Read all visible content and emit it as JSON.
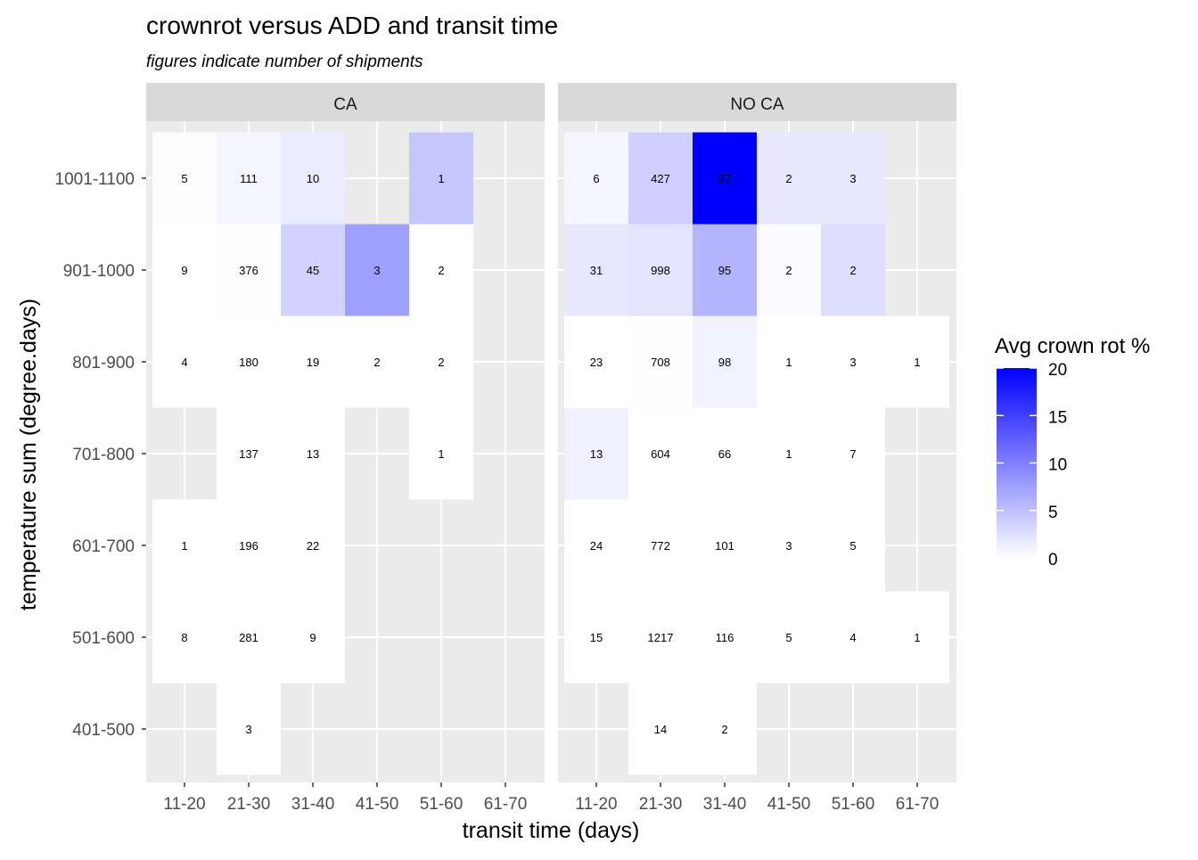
{
  "chart_data": {
    "type": "heatmap",
    "title": "crownrot versus ADD and transit time",
    "subtitle": "figures indicate number of shipments",
    "xlabel": "transit time (days)",
    "ylabel": "temperature sum (degree.days)",
    "x_categories": [
      "11-20",
      "21-30",
      "31-40",
      "41-50",
      "51-60",
      "61-70"
    ],
    "y_categories": [
      "401-500",
      "501-600",
      "601-700",
      "701-800",
      "801-900",
      "901-1000",
      "1001-1100"
    ],
    "legend": {
      "title": "Avg crown rot %",
      "range": [
        0,
        20
      ],
      "ticks": [
        0,
        5,
        10,
        15,
        20
      ],
      "low_color": "#ffffff",
      "high_color": "#0000ff",
      "placement": "right"
    },
    "grid": true,
    "panels": [
      {
        "name": "CA",
        "cells": [
          {
            "x": "11-20",
            "y": "1001-1100",
            "value": 0.2,
            "count": "5"
          },
          {
            "x": "21-30",
            "y": "1001-1100",
            "value": 0.8,
            "count": "111"
          },
          {
            "x": "31-40",
            "y": "1001-1100",
            "value": 1.6,
            "count": "10"
          },
          {
            "x": "51-60",
            "y": "1001-1100",
            "value": 4.5,
            "count": "1"
          },
          {
            "x": "11-20",
            "y": "901-1000",
            "value": 0.0,
            "count": "9"
          },
          {
            "x": "21-30",
            "y": "901-1000",
            "value": 0.1,
            "count": "376"
          },
          {
            "x": "31-40",
            "y": "901-1000",
            "value": 3.5,
            "count": "45"
          },
          {
            "x": "41-50",
            "y": "901-1000",
            "value": 7.5,
            "count": "3"
          },
          {
            "x": "51-60",
            "y": "901-1000",
            "value": 0.0,
            "count": "2"
          },
          {
            "x": "11-20",
            "y": "801-900",
            "value": 0.0,
            "count": "4"
          },
          {
            "x": "21-30",
            "y": "801-900",
            "value": 0.0,
            "count": "180"
          },
          {
            "x": "31-40",
            "y": "801-900",
            "value": 0.0,
            "count": "19"
          },
          {
            "x": "41-50",
            "y": "801-900",
            "value": 0.0,
            "count": "2"
          },
          {
            "x": "51-60",
            "y": "801-900",
            "value": 0.0,
            "count": "2"
          },
          {
            "x": "21-30",
            "y": "701-800",
            "value": 0.0,
            "count": "137"
          },
          {
            "x": "31-40",
            "y": "701-800",
            "value": 0.0,
            "count": "13"
          },
          {
            "x": "51-60",
            "y": "701-800",
            "value": 0.0,
            "count": "1"
          },
          {
            "x": "11-20",
            "y": "601-700",
            "value": 0.0,
            "count": "1"
          },
          {
            "x": "21-30",
            "y": "601-700",
            "value": 0.0,
            "count": "196"
          },
          {
            "x": "31-40",
            "y": "601-700",
            "value": 0.0,
            "count": "22"
          },
          {
            "x": "11-20",
            "y": "501-600",
            "value": 0.0,
            "count": "8"
          },
          {
            "x": "21-30",
            "y": "501-600",
            "value": 0.0,
            "count": "281"
          },
          {
            "x": "31-40",
            "y": "501-600",
            "value": 0.0,
            "count": "9"
          },
          {
            "x": "21-30",
            "y": "401-500",
            "value": 0.0,
            "count": "3"
          }
        ]
      },
      {
        "name": "NO CA",
        "cells": [
          {
            "x": "11-20",
            "y": "1001-1100",
            "value": 0.8,
            "count": "6"
          },
          {
            "x": "21-30",
            "y": "1001-1100",
            "value": 3.8,
            "count": "427"
          },
          {
            "x": "31-40",
            "y": "1001-1100",
            "value": 20.0,
            "count": "67"
          },
          {
            "x": "41-50",
            "y": "1001-1100",
            "value": 1.9,
            "count": "2"
          },
          {
            "x": "51-60",
            "y": "1001-1100",
            "value": 1.8,
            "count": "3"
          },
          {
            "x": "11-20",
            "y": "901-1000",
            "value": 1.9,
            "count": "31"
          },
          {
            "x": "21-30",
            "y": "901-1000",
            "value": 2.1,
            "count": "998"
          },
          {
            "x": "31-40",
            "y": "901-1000",
            "value": 6.0,
            "count": "95"
          },
          {
            "x": "41-50",
            "y": "901-1000",
            "value": 0.3,
            "count": "2"
          },
          {
            "x": "51-60",
            "y": "901-1000",
            "value": 2.6,
            "count": "2"
          },
          {
            "x": "11-20",
            "y": "801-900",
            "value": 0.0,
            "count": "23"
          },
          {
            "x": "21-30",
            "y": "801-900",
            "value": 0.1,
            "count": "708"
          },
          {
            "x": "31-40",
            "y": "801-900",
            "value": 1.0,
            "count": "98"
          },
          {
            "x": "41-50",
            "y": "801-900",
            "value": 0.0,
            "count": "1"
          },
          {
            "x": "51-60",
            "y": "801-900",
            "value": 0.0,
            "count": "3"
          },
          {
            "x": "61-70",
            "y": "801-900",
            "value": 0.0,
            "count": "1"
          },
          {
            "x": "11-20",
            "y": "701-800",
            "value": 1.2,
            "count": "13"
          },
          {
            "x": "21-30",
            "y": "701-800",
            "value": 0.0,
            "count": "604"
          },
          {
            "x": "31-40",
            "y": "701-800",
            "value": 0.0,
            "count": "66"
          },
          {
            "x": "41-50",
            "y": "701-800",
            "value": 0.0,
            "count": "1"
          },
          {
            "x": "51-60",
            "y": "701-800",
            "value": 0.0,
            "count": "7"
          },
          {
            "x": "11-20",
            "y": "601-700",
            "value": 0.0,
            "count": "24"
          },
          {
            "x": "21-30",
            "y": "601-700",
            "value": 0.0,
            "count": "772"
          },
          {
            "x": "31-40",
            "y": "601-700",
            "value": 0.0,
            "count": "101"
          },
          {
            "x": "41-50",
            "y": "601-700",
            "value": 0.0,
            "count": "3"
          },
          {
            "x": "51-60",
            "y": "601-700",
            "value": 0.0,
            "count": "5"
          },
          {
            "x": "11-20",
            "y": "501-600",
            "value": 0.0,
            "count": "15"
          },
          {
            "x": "21-30",
            "y": "501-600",
            "value": 0.0,
            "count": "1217"
          },
          {
            "x": "31-40",
            "y": "501-600",
            "value": 0.0,
            "count": "116"
          },
          {
            "x": "41-50",
            "y": "501-600",
            "value": 0.0,
            "count": "5"
          },
          {
            "x": "51-60",
            "y": "501-600",
            "value": 0.0,
            "count": "4"
          },
          {
            "x": "61-70",
            "y": "501-600",
            "value": 0.0,
            "count": "1"
          },
          {
            "x": "21-30",
            "y": "401-500",
            "value": 0.0,
            "count": "14"
          },
          {
            "x": "31-40",
            "y": "401-500",
            "value": 0.0,
            "count": "2"
          }
        ]
      }
    ]
  }
}
